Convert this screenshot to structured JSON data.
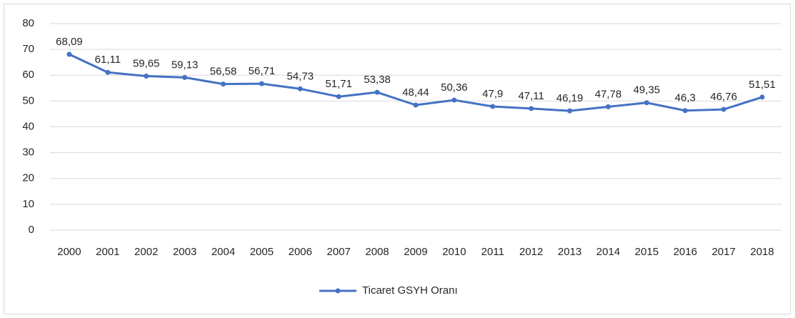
{
  "chart_data": {
    "type": "line",
    "categories": [
      "2000",
      "2001",
      "2002",
      "2003",
      "2004",
      "2005",
      "2006",
      "2007",
      "2008",
      "2009",
      "2010",
      "2011",
      "2012",
      "2013",
      "2014",
      "2015",
      "2016",
      "2017",
      "2018"
    ],
    "series": [
      {
        "name": "Ticaret GSYH Oranı",
        "color": "#4472c4",
        "values": [
          68.09,
          61.11,
          59.65,
          59.13,
          56.58,
          56.71,
          54.73,
          51.71,
          53.38,
          48.44,
          50.36,
          47.9,
          47.11,
          46.19,
          47.78,
          49.35,
          46.3,
          46.76,
          51.51
        ],
        "value_labels": [
          "68,09",
          "61,11",
          "59,65",
          "59,13",
          "56,58",
          "56,71",
          "54,73",
          "51,71",
          "53,38",
          "48,44",
          "50,36",
          "47,9",
          "47,11",
          "46,19",
          "47,78",
          "49,35",
          "46,3",
          "46,76",
          "51,51"
        ]
      }
    ],
    "ylim": [
      0,
      80
    ],
    "yticks": [
      0,
      10,
      20,
      30,
      40,
      50,
      60,
      70,
      80
    ],
    "grid": true,
    "legend": "bottom"
  }
}
